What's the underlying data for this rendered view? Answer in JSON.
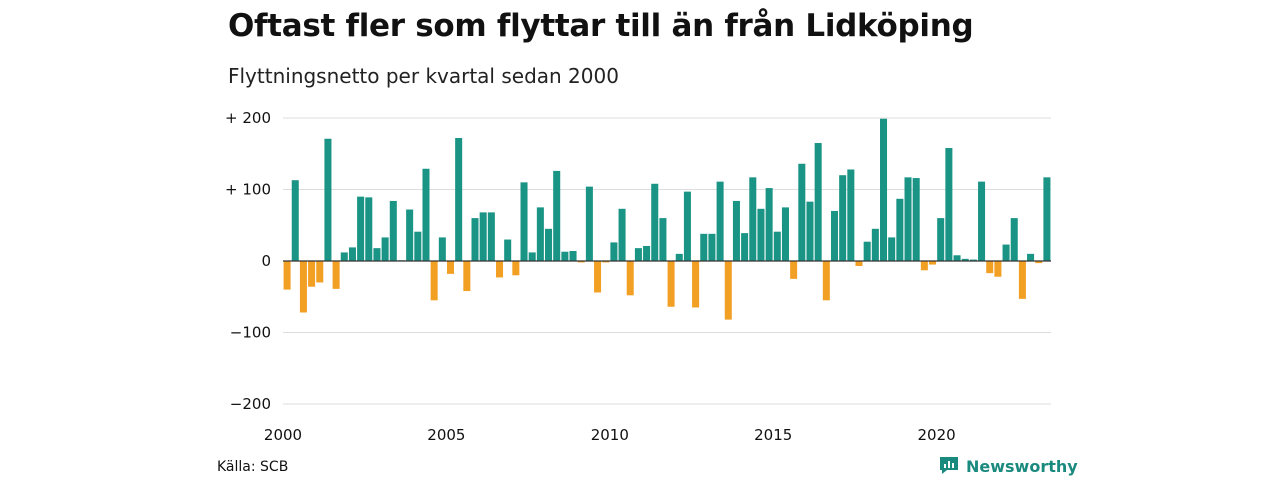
{
  "title": "Oftast fler som flyttar till än från Lidköping",
  "subtitle": "Flyttningsnetto per kvartal sedan 2000",
  "source": "Källa: SCB",
  "brand": "Newsworthy",
  "colors": {
    "positive": "#1a9485",
    "negative": "#f2a024",
    "grid": "#dddddd",
    "brand": "#1b8a7e"
  },
  "chart_data": {
    "type": "bar",
    "start": "2000 Q1",
    "frequency": "quarterly",
    "ylim": [
      -200,
      200
    ],
    "yticks": [
      {
        "value": 200,
        "label": "+ 200"
      },
      {
        "value": 100,
        "label": "+ 100"
      },
      {
        "value": 0,
        "label": "0"
      },
      {
        "value": -100,
        "label": "−100"
      },
      {
        "value": -200,
        "label": "−200"
      }
    ],
    "xticks": [
      {
        "value": 2000,
        "label": "2000"
      },
      {
        "value": 2005,
        "label": "2005"
      },
      {
        "value": 2010,
        "label": "2010"
      },
      {
        "value": 2015,
        "label": "2015"
      },
      {
        "value": 2020,
        "label": "2020"
      }
    ],
    "values": [
      -40,
      113,
      -72,
      -36,
      -30,
      171,
      -39,
      12,
      19,
      90,
      89,
      18,
      33,
      84,
      1,
      72,
      41,
      129,
      -55,
      33,
      -18,
      172,
      -42,
      60,
      68,
      68,
      -23,
      30,
      -20,
      110,
      12,
      75,
      45,
      126,
      13,
      14,
      -2,
      104,
      -44,
      -2,
      26,
      73,
      -48,
      18,
      21,
      108,
      60,
      -64,
      10,
      97,
      -65,
      38,
      38,
      111,
      -82,
      84,
      39,
      117,
      73,
      102,
      41,
      75,
      -25,
      136,
      83,
      165,
      -55,
      70,
      120,
      128,
      -7,
      27,
      45,
      199,
      33,
      87,
      117,
      116,
      -13,
      -5,
      60,
      158,
      8,
      3,
      2,
      111,
      -17,
      -22,
      23,
      60,
      -53,
      10,
      -3,
      117
    ]
  }
}
